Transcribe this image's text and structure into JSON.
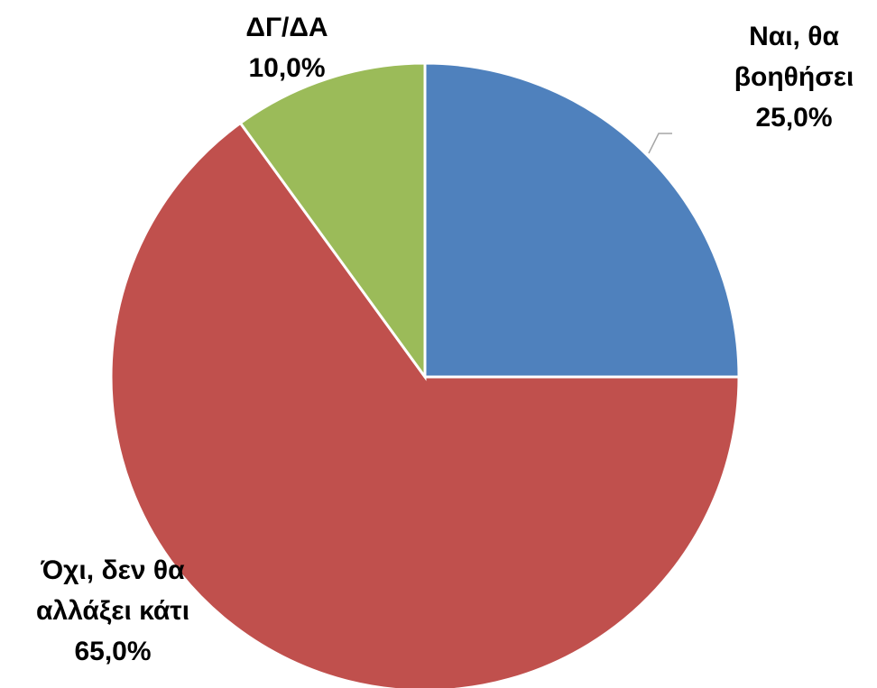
{
  "chart_data": {
    "type": "pie",
    "categories": [
      "Ναι, θα βοηθήσει",
      "Όχι, δεν θα αλλάξει κάτι",
      "ΔΓ/ΔΑ"
    ],
    "values": [
      25,
      65,
      10
    ],
    "value_labels": [
      "25,0%",
      "65,0%",
      "10,0%"
    ],
    "colors": [
      "#4f81bd",
      "#c0504d",
      "#9bbb59"
    ]
  }
}
